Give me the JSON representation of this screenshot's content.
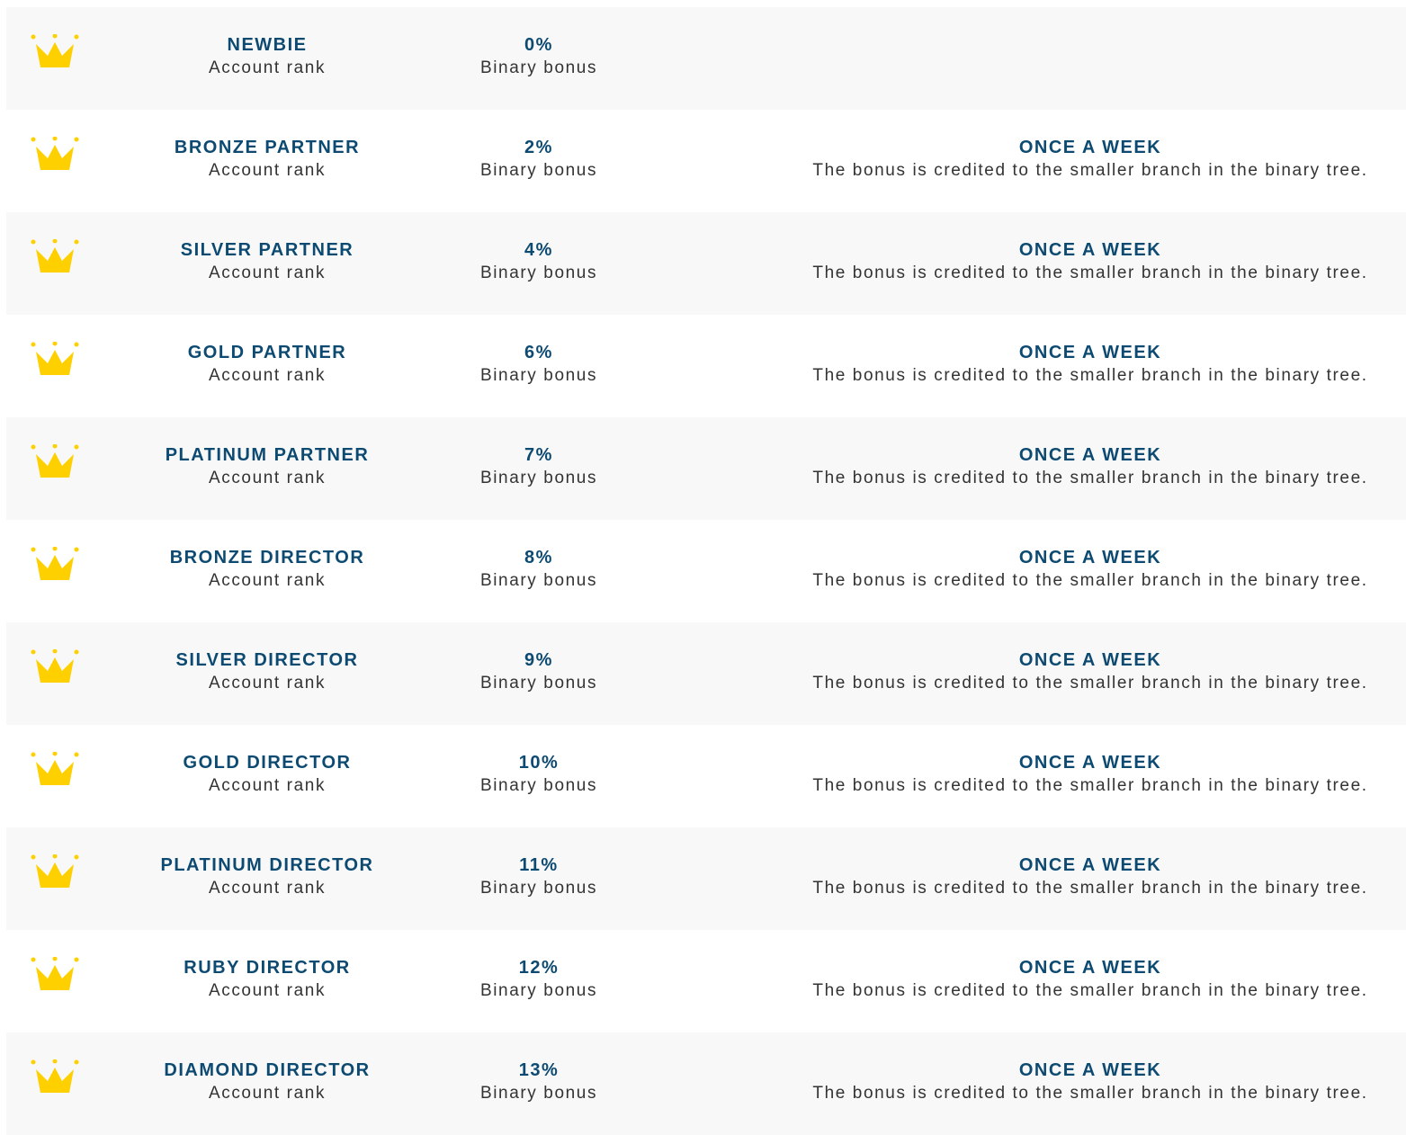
{
  "colors": {
    "accent": "#0d4a72",
    "crown": "#ffd000",
    "row_alt": "#f8f8f8"
  },
  "icon": "crown-icon",
  "rank_label": "Account rank",
  "bonus_label": "Binary bonus",
  "rows": [
    {
      "rank": "NEWBIE",
      "bonus": "0%"
    },
    {
      "rank": "BRONZE PARTNER",
      "bonus": "2%",
      "frequency": "ONCE A WEEK",
      "note": "The bonus is credited to the smaller branch in the binary tree."
    },
    {
      "rank": "SILVER PARTNER",
      "bonus": "4%",
      "frequency": "ONCE A WEEK",
      "note": "The bonus is credited to the smaller branch in the binary tree."
    },
    {
      "rank": "GOLD PARTNER",
      "bonus": "6%",
      "frequency": "ONCE A WEEK",
      "note": "The bonus is credited to the smaller branch in the binary tree."
    },
    {
      "rank": "PLATINUM PARTNER",
      "bonus": "7%",
      "frequency": "ONCE A WEEK",
      "note": "The bonus is credited to the smaller branch in the binary tree."
    },
    {
      "rank": "BRONZE DIRECTOR",
      "bonus": "8%",
      "frequency": "ONCE A WEEK",
      "note": "The bonus is credited to the smaller branch in the binary tree."
    },
    {
      "rank": "SILVER DIRECTOR",
      "bonus": "9%",
      "frequency": "ONCE A WEEK",
      "note": "The bonus is credited to the smaller branch in the binary tree."
    },
    {
      "rank": "GOLD DIRECTOR",
      "bonus": "10%",
      "frequency": "ONCE A WEEK",
      "note": "The bonus is credited to the smaller branch in the binary tree."
    },
    {
      "rank": "PLATINUM DIRECTOR",
      "bonus": "11%",
      "frequency": "ONCE A WEEK",
      "note": "The bonus is credited to the smaller branch in the binary tree."
    },
    {
      "rank": "RUBY DIRECTOR",
      "bonus": "12%",
      "frequency": "ONCE A WEEK",
      "note": "The bonus is credited to the smaller branch in the binary tree."
    },
    {
      "rank": "DIAMOND DIRECTOR",
      "bonus": "13%",
      "frequency": "ONCE A WEEK",
      "note": "The bonus is credited to the smaller branch in the binary tree."
    }
  ]
}
